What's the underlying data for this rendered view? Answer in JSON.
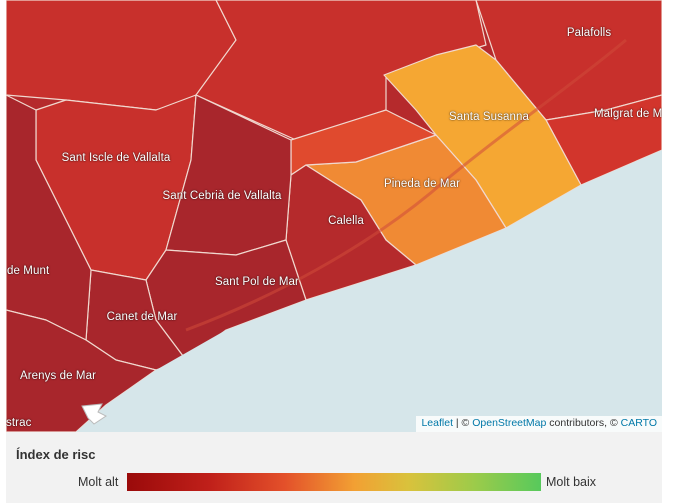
{
  "map": {
    "places": [
      {
        "name": "Palafolls"
      },
      {
        "name": "Santa Susanna"
      },
      {
        "name": "Malgrat de Mar"
      },
      {
        "name": "Sant Iscle de Vallalta"
      },
      {
        "name": "Sant Cebrià de Vallalta"
      },
      {
        "name": "Pineda de Mar"
      },
      {
        "name": "Calella"
      },
      {
        "name": "de Munt"
      },
      {
        "name": "Sant Pol de Mar"
      },
      {
        "name": "Canet de Mar"
      },
      {
        "name": "Arenys de Mar"
      },
      {
        "name": "strac"
      }
    ],
    "colors": {
      "very_high": "#a8262c",
      "high": "#c8302c",
      "high_alt": "#b52a2c",
      "medium_high": "#e04a2e",
      "medium": "#f08a34",
      "medium_low": "#f5a733",
      "sea": "#d6e6ea"
    }
  },
  "attribution": {
    "leaflet": "Leaflet",
    "sep1": " | © ",
    "osm": "OpenStreetMap",
    "sep2": " contributors, © ",
    "carto": "CARTO"
  },
  "legend": {
    "title": "Índex de risc",
    "low_label": "Molt alt",
    "high_label": "Molt baix"
  }
}
